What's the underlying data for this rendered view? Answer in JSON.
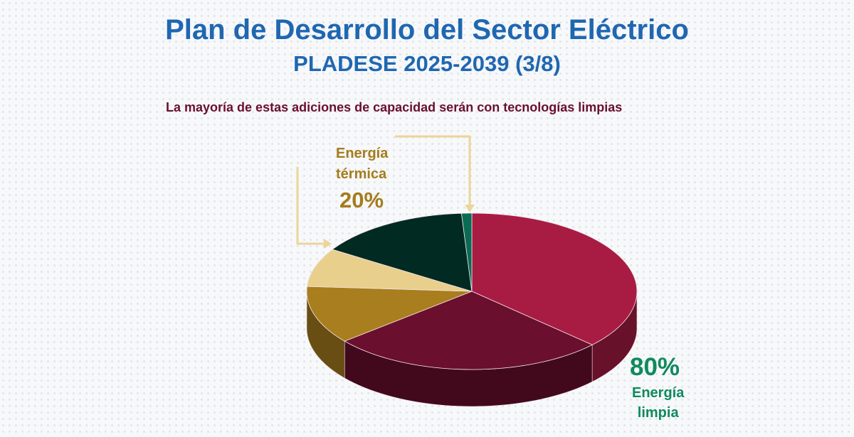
{
  "title": "Plan de Desarrollo del Sector Eléctrico",
  "subtitle": "PLADESE 2025-2039 (3/8)",
  "caption": "La mayoría de estas adiciones de capacidad serán con tecnologías limpias",
  "chart_data": {
    "type": "pie",
    "style": "3d",
    "start": "top, clockwise",
    "slices": [
      {
        "group": "Energía limpia",
        "value": 37,
        "color": "#a81c44"
      },
      {
        "group": "Energía limpia",
        "value": 27,
        "color": "#6b0f2e"
      },
      {
        "group": "Energía térmica",
        "value": 12,
        "color": "#a87e1e"
      },
      {
        "group": "Energía térmica",
        "value": 8,
        "color": "#e8cf8c"
      },
      {
        "group": "Energía limpia",
        "value": 15,
        "color": "#002a22"
      },
      {
        "group": "Energía limpia",
        "value": 1,
        "color": "#0a6b55"
      }
    ],
    "annotations": {
      "thermal": {
        "line1": "Energía",
        "line2": "térmica",
        "pct": "20%"
      },
      "clean": {
        "pct": "80%",
        "line1": "Energía",
        "line2": "limpia"
      }
    }
  }
}
